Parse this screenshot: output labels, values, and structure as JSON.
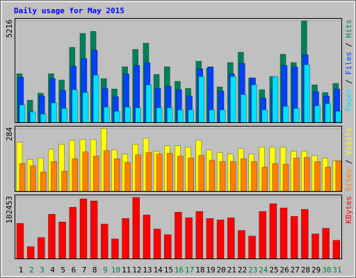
{
  "title": "Daily usage for May 2015",
  "chart_data": [
    {
      "type": "bar",
      "categories": [
        "1",
        "2",
        "3",
        "4",
        "5",
        "6",
        "7",
        "8",
        "9",
        "10",
        "11",
        "12",
        "13",
        "14",
        "15",
        "16",
        "17",
        "18",
        "19",
        "20",
        "21",
        "22",
        "23",
        "24",
        "25",
        "26",
        "27",
        "28",
        "29",
        "30",
        "31"
      ],
      "category_colors": [
        "#000000",
        "#008040",
        "#008040",
        "#000000",
        "#000000",
        "#000000",
        "#000000",
        "#000000",
        "#008040",
        "#008040",
        "#000000",
        "#000000",
        "#000000",
        "#000000",
        "#000000",
        "#008040",
        "#008040",
        "#000000",
        "#000000",
        "#000000",
        "#000000",
        "#000000",
        "#008040",
        "#008040",
        "#000000",
        "#000000",
        "#000000",
        "#000000",
        "#000000",
        "#008040",
        "#008040"
      ],
      "legend_separator": " / ",
      "ylim": [
        0,
        5216
      ],
      "yticks": [
        5216
      ],
      "series": [
        {
          "name": "Pages",
          "color": "#00e0ff",
          "values": [
            892,
            535,
            428,
            1000,
            714,
            1678,
            1535,
            2428,
            785,
            571,
            785,
            750,
            1928,
            750,
            750,
            642,
            642,
            2356,
            642,
            642,
            2356,
            1428,
            1928,
            642,
            2356,
            821,
            714,
            2963,
            857,
            964,
            571
          ]
        },
        {
          "name": "Files",
          "color": "#0040ff",
          "values": [
            2320,
            500,
            1357,
            2250,
            1642,
            2892,
            3284,
            3713,
            1750,
            1321,
            2500,
            2927,
            3070,
            1750,
            1856,
            1678,
            1357,
            2750,
            2856,
            1607,
            2500,
            3035,
            2285,
            1250,
            1750,
            2927,
            2856,
            3463,
            1571,
            1357,
            1714
          ]
        },
        {
          "name": "Hits",
          "color": "#00805c",
          "values": [
            2500,
            1142,
            1500,
            2500,
            2178,
            3856,
            4570,
            4677,
            2250,
            1714,
            2857,
            3750,
            4070,
            2464,
            2857,
            2107,
            1750,
            3142,
            2785,
            1821,
            3070,
            3606,
            2285,
            1678,
            2356,
            3500,
            3070,
            5216,
            1928,
            1535,
            2000
          ]
        }
      ]
    },
    {
      "type": "bar",
      "legend_separator": " / ",
      "ylim": [
        0,
        284
      ],
      "yticks": [
        284
      ],
      "series": [
        {
          "name": "Sites",
          "color": "#ff8000",
          "values": [
            125,
            115,
            87,
            134,
            90,
            147,
            178,
            159,
            184,
            147,
            131,
            165,
            175,
            168,
            172,
            159,
            150,
            162,
            140,
            134,
            134,
            147,
            134,
            109,
            125,
            122,
            150,
            153,
            134,
            109,
            137
          ]
        },
        {
          "name": "Visits",
          "color": "#ffff00",
          "values": [
            222,
            144,
            150,
            190,
            212,
            231,
            234,
            234,
            284,
            187,
            168,
            212,
            240,
            181,
            206,
            206,
            200,
            231,
            187,
            175,
            168,
            193,
            168,
            200,
            200,
            200,
            181,
            181,
            162,
            150,
            137
          ]
        }
      ]
    },
    {
      "type": "bar",
      "ylim": [
        0,
        102453
      ],
      "yticks": [
        102453
      ],
      "series": [
        {
          "name": "KBytes",
          "color": "#ff0000",
          "values": [
            58900,
            20026,
            35340,
            74214,
            61256,
            85994,
            100000,
            96596,
            57722,
            32984,
            67146,
            102453,
            73036,
            49476,
            40052,
            77748,
            68324,
            78926,
            67146,
            64790,
            68324,
            47120,
            37696,
            78926,
            91884,
            84816,
            70680,
            82460,
            41230,
            50654,
            30628
          ]
        }
      ]
    }
  ]
}
